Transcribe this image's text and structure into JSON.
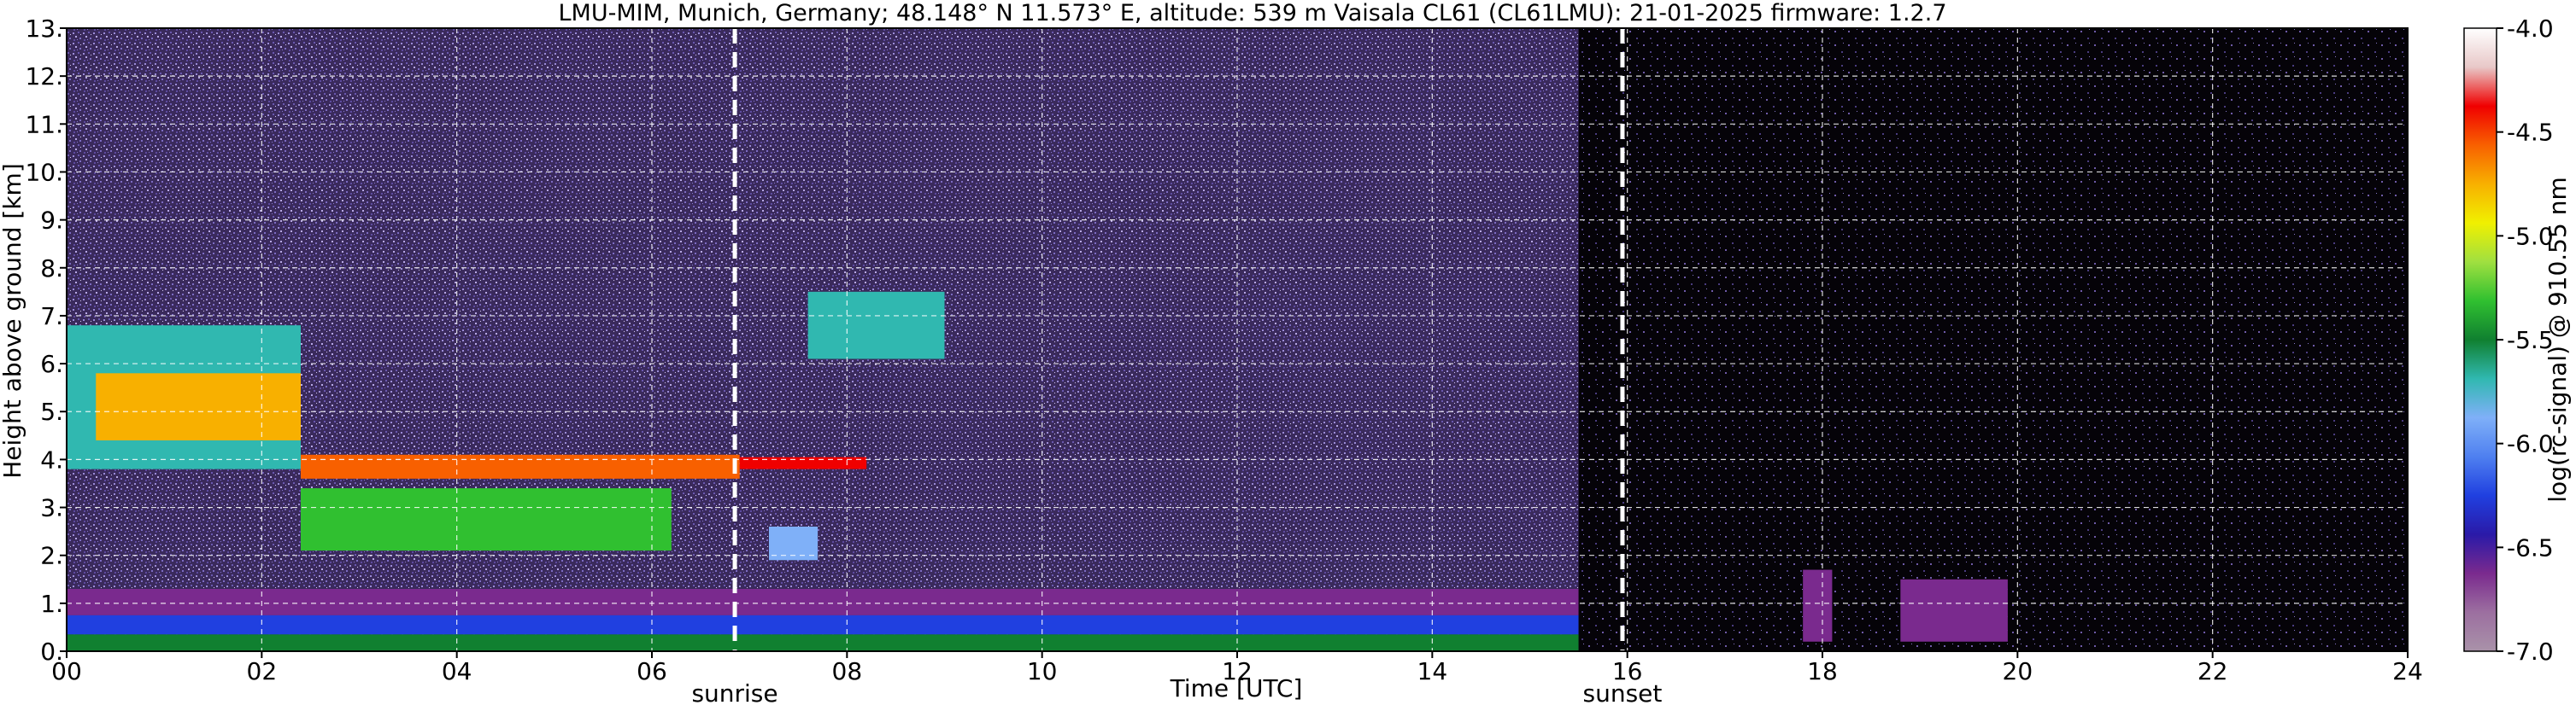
{
  "chart_data": {
    "type": "heatmap",
    "title": "LMU-MIM, Munich, Germany; 48.148° N 11.573° E, altitude: 539 m    Vaisala CL61 (CL61LMU): 21-01-2025    firmware: 1.2.7",
    "xlabel": "Time [UTC]",
    "ylabel": "Height above ground [km]",
    "xlim": [
      0,
      24
    ],
    "ylim": [
      0,
      13
    ],
    "x_ticks": [
      "00",
      "02",
      "04",
      "06",
      "08",
      "10",
      "12",
      "14",
      "16",
      "18",
      "20",
      "22",
      "24"
    ],
    "y_ticks": [
      "0.",
      "1.",
      "2.",
      "3.",
      "4.",
      "5.",
      "6.",
      "7.",
      "8.",
      "9.",
      "10.",
      "11.",
      "12.",
      "13."
    ],
    "grid": true,
    "colorbar": {
      "label": "log(rc-signal) @ 910.55 nm",
      "range": [
        -7.0,
        -4.0
      ],
      "ticks": [
        "-4.0",
        "-4.5",
        "-5.0",
        "-5.5",
        "-6.0",
        "-6.5",
        "-7.0"
      ],
      "colors": [
        "#a992a9",
        "#9c6fa0",
        "#7a2a8e",
        "#2a1aa8",
        "#2040e0",
        "#4f80f0",
        "#7fb0f8",
        "#30b8b0",
        "#108030",
        "#30c030",
        "#a0e040",
        "#f0f000",
        "#f8b000",
        "#f86000",
        "#f00000",
        "#e8c8c8",
        "#ffffff"
      ]
    },
    "annotations": [
      {
        "label": "sunrise",
        "x": 6.85
      },
      {
        "label": "sunset",
        "x": 15.95
      }
    ],
    "layers": [
      {
        "x0": 0,
        "x1": 24,
        "y0": 0,
        "y1": 13,
        "level": "noise"
      },
      {
        "x0": 0,
        "x1": 15.5,
        "y0": 0.75,
        "y1": 1.3,
        "level": -6.6
      },
      {
        "x0": 0,
        "x1": 15.5,
        "y0": 0.35,
        "y1": 0.75,
        "level": -6.3
      },
      {
        "x0": 0,
        "x1": 15.5,
        "y0": 0.0,
        "y1": 0.35,
        "level": -5.5
      },
      {
        "x0": 0,
        "x1": 2.4,
        "y0": 3.8,
        "y1": 6.8,
        "level": -5.7
      },
      {
        "x0": 0.3,
        "x1": 2.4,
        "y0": 4.4,
        "y1": 5.8,
        "level": -4.8
      },
      {
        "x0": 2.4,
        "x1": 6.2,
        "y0": 2.1,
        "y1": 3.4,
        "level": -5.3
      },
      {
        "x0": 2.4,
        "x1": 6.9,
        "y0": 3.6,
        "y1": 4.1,
        "level": -4.6
      },
      {
        "x0": 6.9,
        "x1": 8.2,
        "y0": 3.8,
        "y1": 4.05,
        "level": -4.4
      },
      {
        "x0": 7.6,
        "x1": 9.0,
        "y0": 6.1,
        "y1": 7.5,
        "level": -5.6
      },
      {
        "x0": 7.2,
        "x1": 7.7,
        "y0": 1.9,
        "y1": 2.6,
        "level": -5.8
      },
      {
        "x0": 15.5,
        "x1": 24,
        "y0": 0,
        "y1": 13,
        "level": "no-signal"
      },
      {
        "x0": 17.8,
        "x1": 18.1,
        "y0": 0.2,
        "y1": 1.7,
        "level": -6.7
      },
      {
        "x0": 18.8,
        "x1": 19.9,
        "y0": 0.2,
        "y1": 1.5,
        "level": -6.7
      }
    ]
  }
}
